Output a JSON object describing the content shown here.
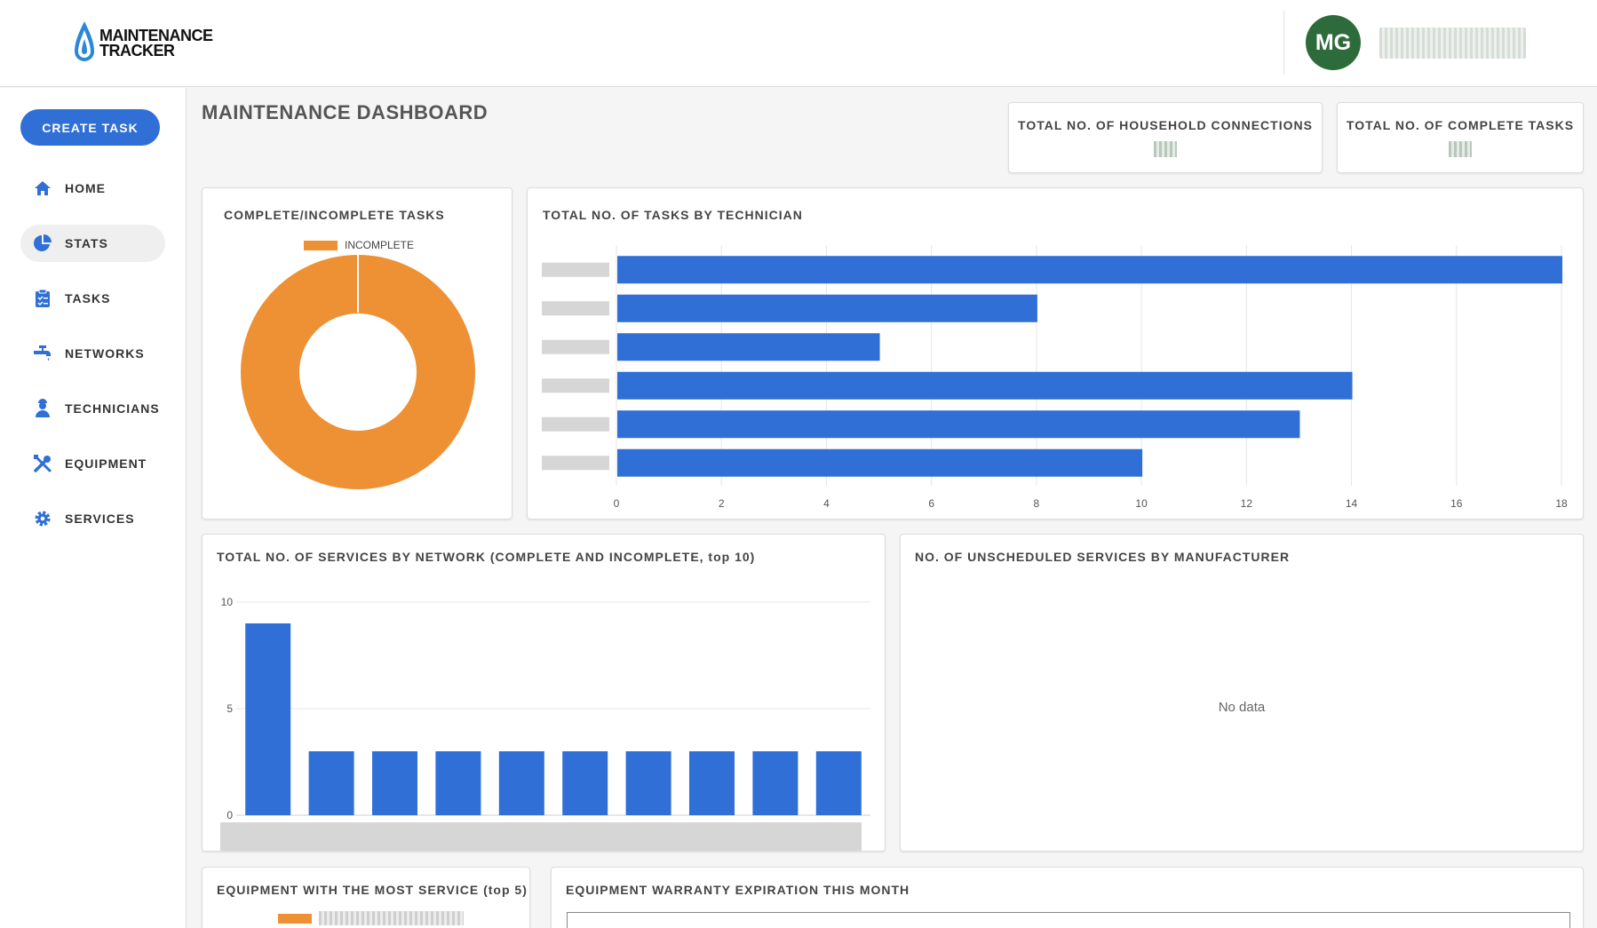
{
  "header": {
    "logo_line1": "MAINTENANCE",
    "logo_line2": "TRACKER",
    "avatar_initials": "MG",
    "username": ""
  },
  "sidebar": {
    "create_label": "CREATE TASK",
    "items": [
      {
        "label": "HOME",
        "icon": "home-icon"
      },
      {
        "label": "STATS",
        "icon": "pie-chart-icon",
        "active": true
      },
      {
        "label": "TASKS",
        "icon": "clipboard-icon"
      },
      {
        "label": "NETWORKS",
        "icon": "water-tap-icon"
      },
      {
        "label": "TECHNICIANS",
        "icon": "technician-icon"
      },
      {
        "label": "EQUIPMENT",
        "icon": "tools-icon"
      },
      {
        "label": "SERVICES",
        "icon": "gear-icon"
      }
    ]
  },
  "main": {
    "title": "MAINTENANCE DASHBOARD",
    "kpis": [
      {
        "label": "TOTAL NO. OF HOUSEHOLD CONNECTIONS",
        "value": ""
      },
      {
        "label": "TOTAL NO. OF COMPLETE TASKS",
        "value": ""
      }
    ],
    "cards": {
      "donut_title": "COMPLETE/INCOMPLETE TASKS",
      "tech_title": "TOTAL NO. OF TASKS BY TECHNICIAN",
      "network_title": "TOTAL NO. OF SERVICES BY NETWORK (COMPLETE AND INCOMPLETE, top 10)",
      "manufacturer_title": "NO. OF UNSCHEDULED SERVICES BY MANUFACTURER",
      "manufacturer_empty": "No data",
      "equipment_title": "EQUIPMENT WITH THE MOST SERVICE (top 5)",
      "warranty_title": "EQUIPMENT WARRANTY EXPIRATION THIS MONTH",
      "equipment_legend": ""
    }
  },
  "colors": {
    "accent": "#2f6fd6",
    "incomplete": "#ee9135",
    "avatar": "#2e6b3a"
  },
  "chart_data": [
    {
      "type": "pie",
      "title": "COMPLETE/INCOMPLETE TASKS",
      "legend": [
        "INCOMPLETE"
      ],
      "slices": [
        {
          "label": "INCOMPLETE",
          "value": 1
        }
      ],
      "legend_position": "top"
    },
    {
      "type": "bar",
      "orientation": "horizontal",
      "title": "TOTAL NO. OF TASKS BY TECHNICIAN",
      "categories": [
        "",
        "",
        "",
        "",
        "",
        ""
      ],
      "values": [
        18,
        8,
        5,
        14,
        13,
        10
      ],
      "xticks": [
        0,
        2,
        4,
        6,
        8,
        10,
        12,
        14,
        16,
        18
      ],
      "xlim": [
        0,
        18
      ],
      "grid": true
    },
    {
      "type": "bar",
      "title": "TOTAL NO. OF SERVICES BY NETWORK (COMPLETE AND INCOMPLETE, top 10)",
      "categories": [
        "",
        "",
        "",
        "",
        "",
        "",
        "",
        "",
        "",
        ""
      ],
      "values": [
        9,
        3,
        3,
        3,
        3,
        3,
        3,
        3,
        3,
        3
      ],
      "yticks": [
        0,
        5,
        10
      ],
      "ylim": [
        0,
        10
      ],
      "grid": true
    }
  ]
}
